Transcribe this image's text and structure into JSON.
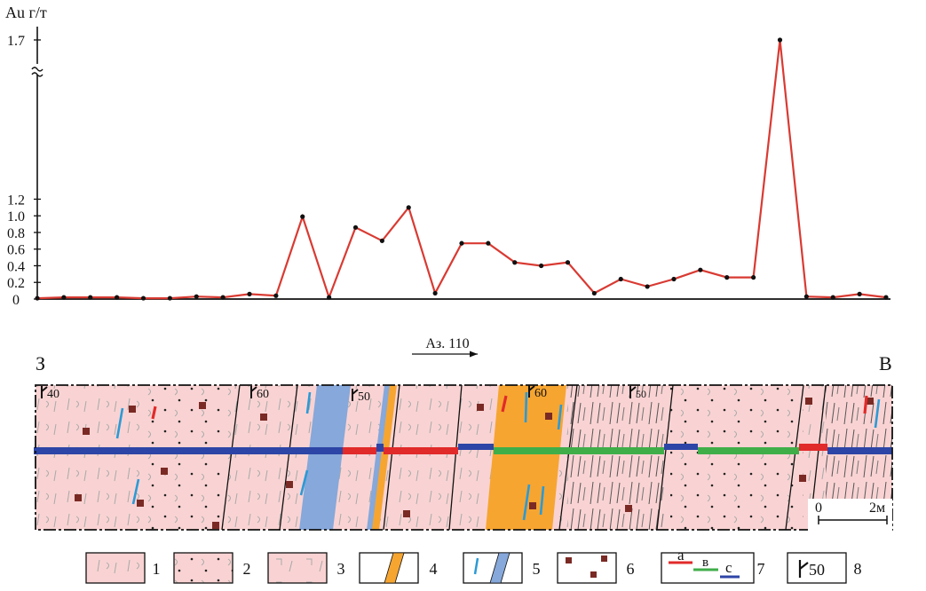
{
  "chart_data": {
    "type": "line",
    "ylabel": "Au г/т",
    "y_ticks": [
      "0",
      "0.2",
      "0.4",
      "0.6",
      "0.8",
      "1.0",
      "1.2",
      "1.7"
    ],
    "ylim": [
      0,
      1.7
    ],
    "axis_break": "1.2–1.7",
    "series": [
      {
        "color": "#d93a32",
        "values": [
          0.01,
          0.02,
          0.02,
          0.02,
          0.01,
          0.01,
          0.03,
          0.02,
          0.06,
          0.04,
          0.99,
          0.02,
          0.86,
          0.7,
          1.1,
          0.07,
          0.67,
          0.67,
          0.44,
          0.4,
          0.44,
          0.07,
          0.24,
          0.15,
          0.24,
          0.35,
          0.26,
          0.26,
          1.7,
          0.03,
          0.02,
          0.06,
          0.02
        ]
      }
    ]
  },
  "section": {
    "west_label": "З",
    "east_label": "В",
    "azimuth_label": "Аз. 110",
    "dip_labels": [
      "40",
      "60",
      "50",
      "60",
      "50"
    ],
    "scale_labels": [
      "0",
      "2м"
    ]
  },
  "legend": {
    "items": [
      {
        "number": "1"
      },
      {
        "number": "2"
      },
      {
        "number": "3"
      },
      {
        "number": "4"
      },
      {
        "number": "5"
      },
      {
        "number": "6"
      },
      {
        "number": "7",
        "sublabels": [
          "а",
          "в",
          "с"
        ]
      },
      {
        "number": "8",
        "symbol_label": "50"
      }
    ]
  },
  "colors": {
    "rock_pink": "#f9d3d3",
    "quartz_orange": "#f6a531",
    "vein_blue": "#86a8da",
    "grade_red": "#e12a2a",
    "grade_green": "#3fae49",
    "grade_navy": "#2d45a6",
    "mineral_brown": "#7a2a24",
    "crack_cyan": "#2b9ad6"
  }
}
